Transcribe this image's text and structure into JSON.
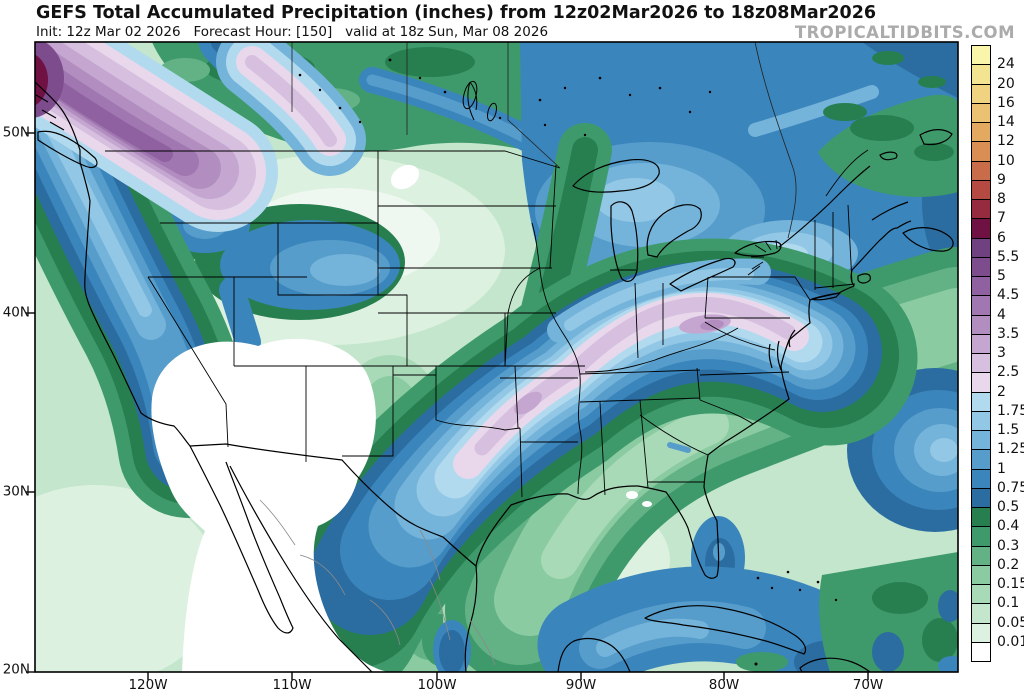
{
  "header": {
    "title": "GEFS Total Accumulated Precipitation (inches) from 12z02Mar2026 to 18z08Mar2026",
    "init_line": "Init: 12z Mar 02 2026   Forecast Hour: [150]   valid at 18z Sun, Mar 08 2026",
    "watermark": "TROPICALTIDBITS.COM"
  },
  "map": {
    "lat_tick_labels": [
      "50N",
      "40N",
      "30N",
      "20N"
    ],
    "lon_tick_labels": [
      "120W",
      "110W",
      "100W",
      "90W",
      "80W",
      "70W"
    ]
  },
  "colorbar": {
    "tick_labels": [
      "24",
      "20",
      "16",
      "14",
      "12",
      "10",
      "9",
      "8",
      "7",
      "6",
      "5.5",
      "5",
      "4.5",
      "4",
      "3.5",
      "3",
      "2.5",
      "2",
      "1.75",
      "1.5",
      "1.25",
      "1",
      "0.75",
      "0.5",
      "0.4",
      "0.3",
      "0.2",
      "0.15",
      "0.1",
      "0.05",
      "0.01"
    ],
    "box_colors_top_to_bottom": [
      "#F9F6AB",
      "#F3E492",
      "#EFD381",
      "#EBC172",
      "#E4A961",
      "#DA8E54",
      "#C96C4A",
      "#B54A43",
      "#962B40",
      "#701144",
      "#6F4180",
      "#7D4C8C",
      "#8F61A0",
      "#A077B0",
      "#B28EC0",
      "#C4A6D0",
      "#D6BFDF",
      "#E9D8EB",
      "#B2DAEF",
      "#92C7E5",
      "#74B3DA",
      "#579DCB",
      "#3A85BC",
      "#2B6DA1",
      "#277F50",
      "#3F9A6B",
      "#63B286",
      "#8BCBA1",
      "#A9DAB8",
      "#C3E6CC",
      "#DDF1E0",
      "#FFFFFF"
    ]
  }
}
